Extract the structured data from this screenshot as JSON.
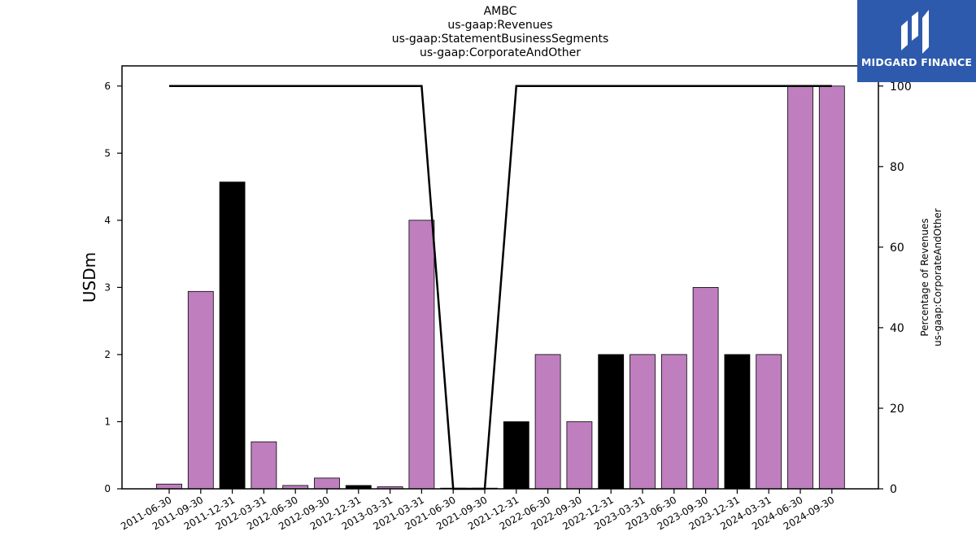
{
  "chart_data": {
    "type": "bar",
    "title_lines": [
      "AMBC",
      "us-gaap:Revenues",
      "us-gaap:StatementBusinessSegments",
      "us-gaap:CorporateAndOther"
    ],
    "ylabel": "USDm",
    "ylabel_right_lines": [
      "Percentage of Revenues",
      "us-gaap:CorporateAndOther"
    ],
    "ylim": [
      0,
      6.3
    ],
    "ylim_right": [
      0,
      105
    ],
    "yticks": [
      0,
      1,
      2,
      3,
      4,
      5,
      6
    ],
    "yticks_right": [
      0,
      20,
      40,
      60,
      80,
      100
    ],
    "categories": [
      "2011-06-30",
      "2011-09-30",
      "2011-12-31",
      "2012-03-31",
      "2012-06-30",
      "2012-09-30",
      "2012-12-31",
      "2013-03-31",
      "2021-03-31",
      "2021-06-30",
      "2021-09-30",
      "2021-12-31",
      "2022-06-30",
      "2022-09-30",
      "2022-12-31",
      "2023-03-31",
      "2023-06-30",
      "2023-09-30",
      "2023-12-31",
      "2024-03-31",
      "2024-06-30",
      "2024-09-30"
    ],
    "series": [
      {
        "type": "bar",
        "values": [
          0.07,
          2.94,
          4.57,
          0.7,
          0.05,
          0.16,
          0.05,
          0.03,
          4.0,
          0.01,
          0.01,
          1.0,
          2.0,
          1.0,
          2.0,
          2.0,
          2.0,
          3.0,
          2.0,
          2.0,
          6.0,
          6.0
        ],
        "colors": [
          "#bf7fbf",
          "#bf7fbf",
          "#000000",
          "#bf7fbf",
          "#bf7fbf",
          "#bf7fbf",
          "#000000",
          "#bf7fbf",
          "#bf7fbf",
          "#bf7fbf",
          "#bf7fbf",
          "#000000",
          "#bf7fbf",
          "#bf7fbf",
          "#000000",
          "#bf7fbf",
          "#bf7fbf",
          "#bf7fbf",
          "#000000",
          "#bf7fbf",
          "#bf7fbf",
          "#bf7fbf"
        ]
      },
      {
        "type": "line",
        "axis": "right",
        "values": [
          100,
          100,
          100,
          100,
          100,
          100,
          100,
          100,
          100,
          0,
          0,
          100,
          100,
          100,
          100,
          100,
          100,
          100,
          100,
          100,
          100,
          100
        ],
        "color": "#000000"
      }
    ],
    "grid": false
  },
  "logo": {
    "text": "MIDGARD FINANCE",
    "color": "#2d5aad"
  }
}
